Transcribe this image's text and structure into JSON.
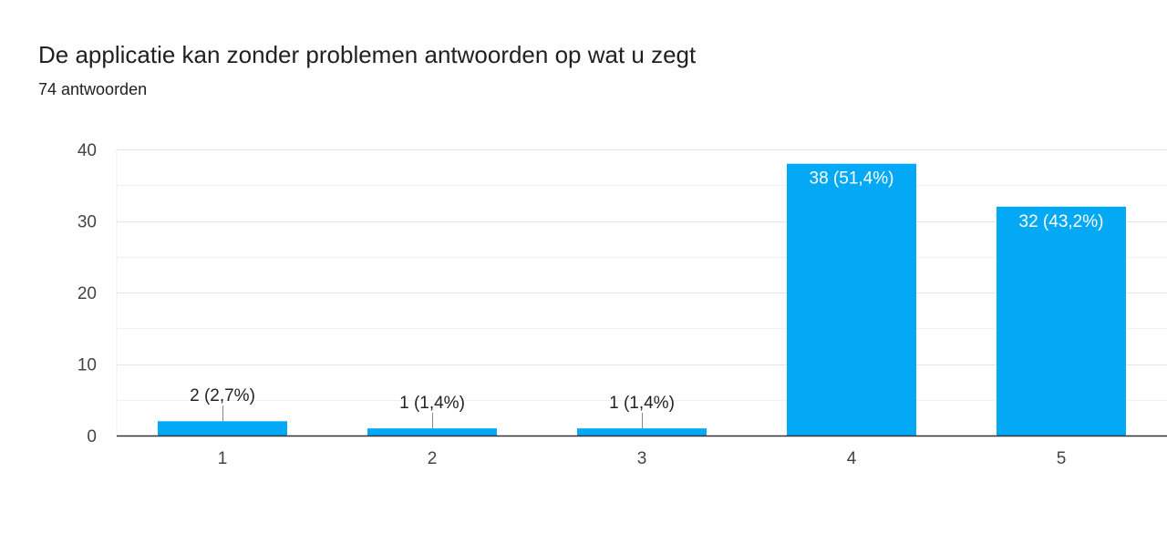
{
  "header": {
    "title": "De applicatie kan zonder problemen antwoorden op wat u zegt",
    "subtitle": "74 antwoorden"
  },
  "chart_data": {
    "type": "bar",
    "categories": [
      "1",
      "2",
      "3",
      "4",
      "5"
    ],
    "values": [
      2,
      1,
      1,
      38,
      32
    ],
    "data_labels": [
      "2 (2,7%)",
      "1 (1,4%)",
      "1 (1,4%)",
      "38 (51,4%)",
      "32 (43,2%)"
    ],
    "title": "De applicatie kan zonder problemen antwoorden op wat u zegt",
    "subtitle": "74 antwoorden",
    "xlabel": "",
    "ylabel": "",
    "ylim": [
      0,
      40
    ],
    "yticks": [
      0,
      10,
      20,
      30,
      40
    ],
    "grid": true,
    "legend": "none",
    "colors": {
      "bar": "#03a9f4",
      "grid": "#ebebeb",
      "axis": "#333333",
      "label_inside": "#ffffff",
      "label_outside": "#222222"
    }
  }
}
